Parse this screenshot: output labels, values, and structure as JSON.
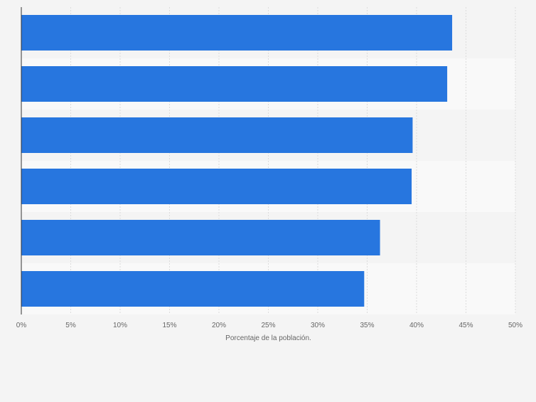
{
  "chart_data": {
    "type": "bar",
    "orientation": "horizontal",
    "categories": [
      "",
      "",
      "",
      "",
      "",
      ""
    ],
    "values": [
      43.6,
      43.1,
      39.6,
      39.5,
      36.3,
      34.7
    ],
    "xlabel": "Porcentaje de la población.",
    "ylabel": "",
    "xlim": [
      0,
      50
    ],
    "xticks": [
      "0%",
      "5%",
      "10%",
      "15%",
      "20%",
      "25%",
      "30%",
      "35%",
      "40%",
      "45%",
      "50%"
    ],
    "grid": true,
    "legend": "none",
    "colors": {
      "bar": "#2776df",
      "background": "#f4f4f4",
      "band_alt": "#f9f9f9",
      "grid": "#dcdcdc",
      "axis": "#333333",
      "tick_text": "#666666"
    }
  }
}
